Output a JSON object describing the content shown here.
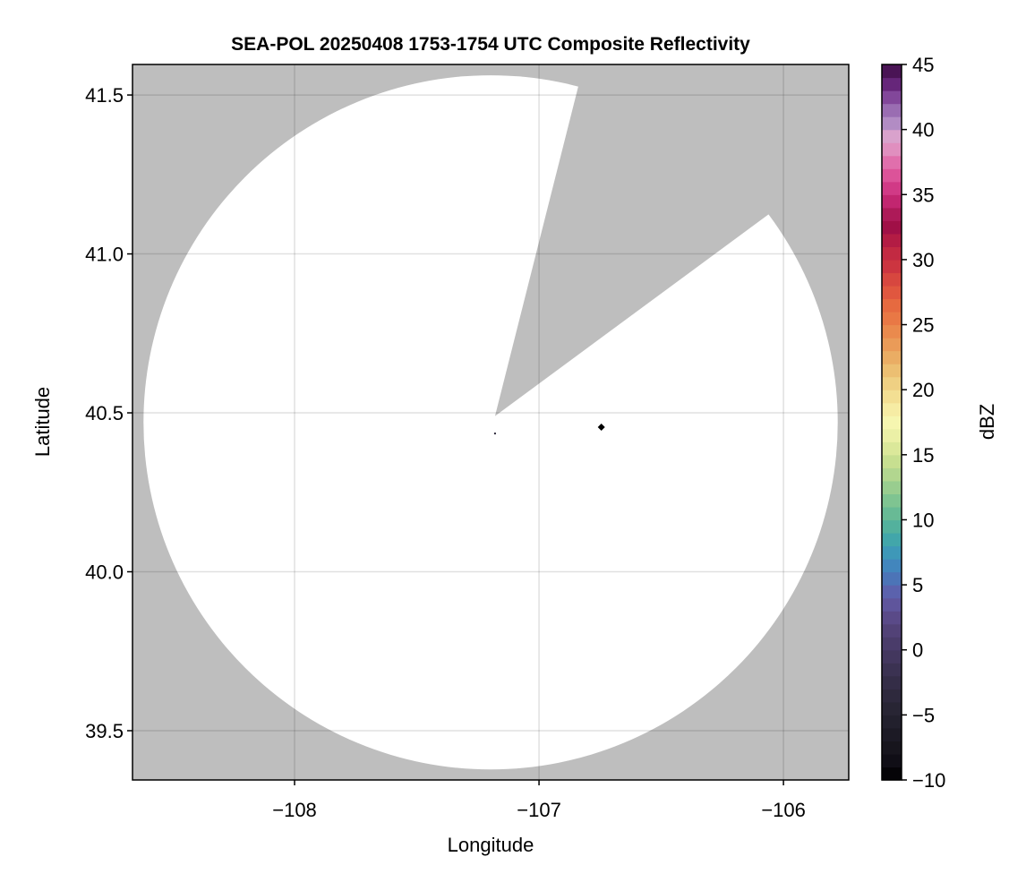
{
  "chart_data": {
    "type": "heatmap",
    "title": "SEA-POL 20250408 1753-1754 UTC Composite Reflectivity",
    "xlabel": "Longitude",
    "ylabel": "Latitude",
    "xlim": [
      -108.663,
      -105.733
    ],
    "ylim": [
      39.345,
      41.596
    ],
    "xticks": [
      -108,
      -107,
      -106
    ],
    "xtick_labels": [
      "−108",
      "−107",
      "−106"
    ],
    "yticks": [
      39.5,
      40.0,
      40.5,
      41.0,
      41.5
    ],
    "ytick_labels": [
      "39.5",
      "40.0",
      "40.5",
      "41.0",
      "41.5"
    ],
    "grid": true,
    "background_color": "#bebebe",
    "scan_area_color": "#ffffff",
    "scan_area": {
      "center_lon": -107.198,
      "center_lat": 40.47,
      "radius_lon": 1.42,
      "radius_lat": 1.092
    },
    "blocked_sector": {
      "apex": [
        -107.18,
        40.49
      ],
      "edge1": [
        -106.84,
        41.525
      ],
      "edge2": [
        -106.06,
        41.125
      ]
    },
    "markers": [
      {
        "lon": -106.745,
        "lat": 40.455,
        "shape": "diamond",
        "color": "#000000"
      },
      {
        "lon": -107.18,
        "lat": 40.435,
        "shape": "dot",
        "color": "#2b2638"
      }
    ],
    "colorbar": {
      "label": "dBZ",
      "range": [
        -10,
        45
      ],
      "step": 1,
      "ticks": [
        -10,
        -5,
        0,
        5,
        10,
        15,
        20,
        25,
        30,
        35,
        40,
        45
      ],
      "tick_labels": [
        "−10",
        "−5",
        "0",
        "5",
        "10",
        "15",
        "20",
        "25",
        "30",
        "35",
        "40",
        "45"
      ],
      "colors": [
        "#050407",
        "#100e16",
        "#17151d",
        "#1c1a25",
        "#22202d",
        "#282534",
        "#2e293d",
        "#342d47",
        "#3b3252",
        "#43375e",
        "#4a3c6a",
        "#524277",
        "#5a4a88",
        "#5f559c",
        "#5b62ad",
        "#4c74b7",
        "#4286bd",
        "#3e98b8",
        "#42a6aa",
        "#53b19d",
        "#68ba95",
        "#7fc491",
        "#99cd8f",
        "#b2d68f",
        "#c7df90",
        "#dbe89a",
        "#ebf0a6",
        "#f6f6b0",
        "#f6eca4",
        "#f3df93",
        "#efd083",
        "#ecbf72",
        "#eaad64",
        "#ea9b58",
        "#ea8a4d",
        "#e97845",
        "#e66a40",
        "#e0573f",
        "#d7473f",
        "#cc3540",
        "#c22a42",
        "#b31c44",
        "#a01047",
        "#ad1a58",
        "#c22670",
        "#d13a86",
        "#dc5399",
        "#e06fac",
        "#e08fbf",
        "#d9a2cc",
        "#b28cc4",
        "#9a6db2",
        "#82479a",
        "#66267a",
        "#4a1455"
      ]
    }
  }
}
